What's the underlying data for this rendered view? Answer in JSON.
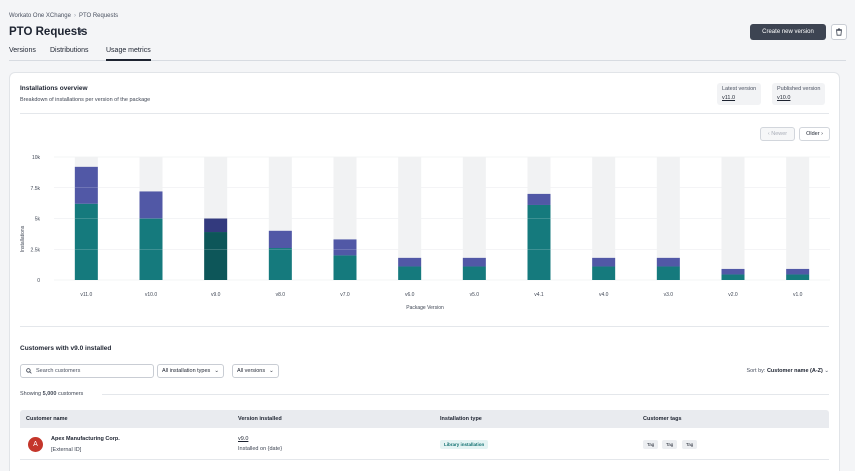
{
  "breadcrumb": {
    "root": "Workato One XChange",
    "separator": "›",
    "current": "PTO Requests"
  },
  "page": {
    "title": "PTO Requests",
    "edit_icon": "pencil-icon"
  },
  "actions": {
    "create_label": "Create new version",
    "delete_icon": "trash-icon"
  },
  "tabs": [
    {
      "label": "Versions"
    },
    {
      "label": "Distributions"
    },
    {
      "label": "Usage metrics",
      "active": true
    }
  ],
  "overview": {
    "title": "Installations overview",
    "subtitle": "Breakdown of installations per version of the package",
    "latest_label": "Latest version",
    "latest_value": "v11.0",
    "published_label": "Published version",
    "published_value": "v10.0"
  },
  "pager": {
    "newer": "‹ Newer",
    "older": "Older ›"
  },
  "chart_data": {
    "type": "bar",
    "stacked": true,
    "xlabel": "Package Version",
    "ylabel": "Installations",
    "ylim": [
      0,
      10000
    ],
    "yticks": [
      0,
      2500,
      5000,
      7500,
      10000
    ],
    "ytick_labels": [
      "0",
      "2.5k",
      "5k",
      "7.5k",
      "10k"
    ],
    "categories": [
      "v11.0",
      "v10.0",
      "v9.0",
      "v8.0",
      "v7.0",
      "v6.0",
      "v5.0",
      "v4.1",
      "v4.0",
      "v3.0",
      "v2.0",
      "v1.0"
    ],
    "selected": "v9.0",
    "series": [
      {
        "values": [
          6200,
          5000,
          3900,
          2600,
          2000,
          1100,
          1100,
          6100,
          1100,
          1100,
          450,
          450
        ],
        "color": "#157a7d",
        "selected_color": "#0d5659"
      },
      {
        "values": [
          3000,
          2200,
          1100,
          1400,
          1300,
          700,
          700,
          900,
          700,
          700,
          450,
          450
        ],
        "color": "#5158a6",
        "selected_color": "#333a7e"
      }
    ],
    "background_color": "#f1f2f3"
  },
  "customers": {
    "title": "Customers with v9.0 installed",
    "search_placeholder": "Search customers",
    "search_icon": "search-icon",
    "filter_type": "All installation types",
    "filter_version": "All versions",
    "sort_label": "Sort by:",
    "sort_value": "Customer name (A-Z)",
    "showing_prefix": "Showing",
    "showing_count": "5,000",
    "showing_suffix": "customers",
    "columns": [
      "Customer name",
      "Version installed",
      "Installation type",
      "Customer tags"
    ],
    "rows": [
      {
        "initial": "A",
        "name": "Apex Manufacturing Corp.",
        "external_id": "[External ID]",
        "version": "v9.0",
        "installed_on": "Installed on {date}",
        "type": "Library installation",
        "tags": [
          "Tag",
          "Tag",
          "Tag"
        ]
      }
    ]
  }
}
